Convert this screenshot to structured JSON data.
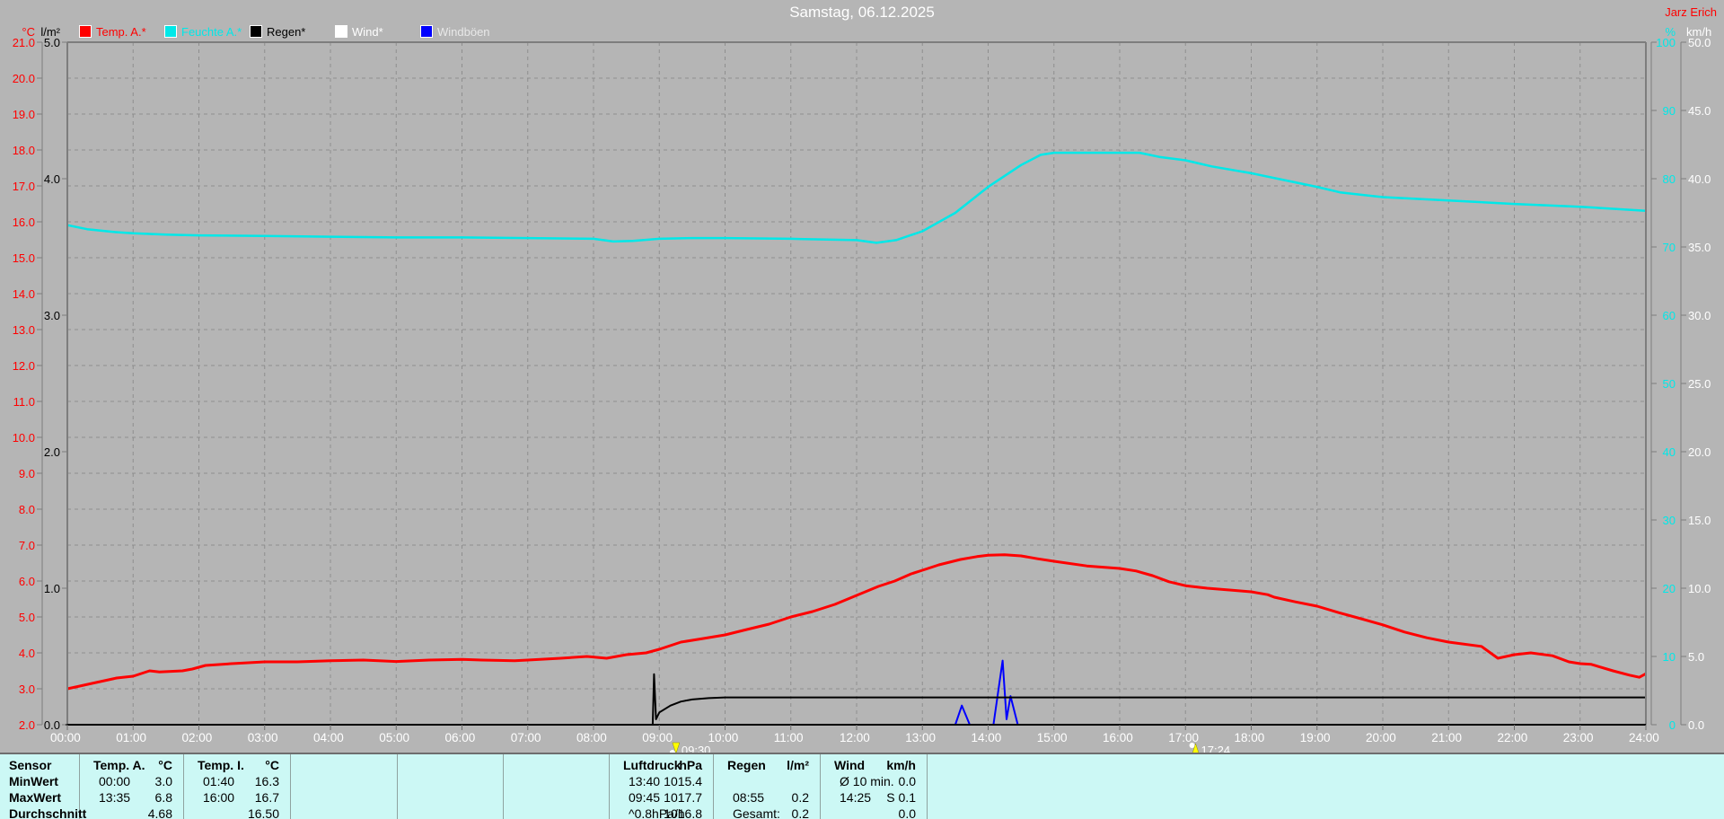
{
  "header": {
    "title": "Samstag, 06.12.2025",
    "station": "Jarz Erich"
  },
  "legend": {
    "items": [
      {
        "label": "Temp. A.*",
        "swatch": "#ff0000",
        "text_color": "#ff0000"
      },
      {
        "label": "Feuchte A.*",
        "swatch": "#00e8e8",
        "text_color": "#00e8e8"
      },
      {
        "label": "Regen*",
        "swatch": "#000000",
        "text_color": "#000000"
      },
      {
        "label": "Wind*",
        "swatch": "#ffffff",
        "text_color": "#ffffff"
      },
      {
        "label": "Windböen",
        "swatch": "#0000ff",
        "text_color": "#e8e8e8"
      }
    ]
  },
  "axes": {
    "temp": {
      "unit": "°C",
      "color": "#ff0000",
      "ticks": [
        "21.0",
        "20.0",
        "19.0",
        "18.0",
        "17.0",
        "16.0",
        "15.0",
        "14.0",
        "13.0",
        "12.0",
        "11.0",
        "10.0",
        "9.0",
        "8.0",
        "7.0",
        "6.0",
        "5.0",
        "4.0",
        "3.0",
        "2.0"
      ],
      "min": 2,
      "max": 21
    },
    "rain": {
      "unit": "l/m²",
      "color": "#000000",
      "ticks": [
        "5.0",
        "4.0",
        "3.0",
        "2.0",
        "1.0",
        "0.0"
      ],
      "min": 0,
      "max": 5
    },
    "hum": {
      "unit": "%",
      "color": "#00e8e8",
      "ticks": [
        "100",
        "90",
        "80",
        "70",
        "60",
        "50",
        "40",
        "30",
        "20",
        "10",
        "0"
      ],
      "min": 0,
      "max": 100
    },
    "wind": {
      "unit": "km/h",
      "color": "#ffffff",
      "ticks": [
        "50.0",
        "45.0",
        "40.0",
        "35.0",
        "30.0",
        "25.0",
        "20.0",
        "15.0",
        "10.0",
        "5.0",
        "0.0"
      ],
      "min": 0,
      "max": 50
    },
    "time": {
      "ticks": [
        "00:00",
        "01:00",
        "02:00",
        "03:00",
        "04:00",
        "05:00",
        "06:00",
        "07:00",
        "08:00",
        "09:00",
        "10:00",
        "11:00",
        "12:00",
        "13:00",
        "14:00",
        "15:00",
        "16:00",
        "17:00",
        "18:00",
        "19:00",
        "20:00",
        "21:00",
        "22:00",
        "23:00",
        "24:00"
      ]
    }
  },
  "sun_markers": [
    {
      "time": "09:30",
      "hour": 9.5,
      "kind": "sunrise"
    },
    {
      "time": "17:24",
      "hour": 17.4,
      "kind": "sunset"
    }
  ],
  "chart_data": {
    "type": "line",
    "x_unit": "hours",
    "x_range": [
      0,
      24
    ],
    "grid": {
      "horizontal_step_degC": 1,
      "vertical_step_hours": 1
    },
    "series": [
      {
        "name": "Temp. A.",
        "unit": "°C",
        "color": "#ff0000",
        "width": 3,
        "scale": "temp",
        "points": [
          [
            0,
            3.0
          ],
          [
            0.25,
            3.1
          ],
          [
            0.5,
            3.2
          ],
          [
            0.75,
            3.3
          ],
          [
            1.0,
            3.35
          ],
          [
            1.25,
            3.5
          ],
          [
            1.4,
            3.47
          ],
          [
            1.75,
            3.5
          ],
          [
            1.9,
            3.55
          ],
          [
            2.1,
            3.65
          ],
          [
            2.5,
            3.7
          ],
          [
            3.0,
            3.75
          ],
          [
            3.5,
            3.75
          ],
          [
            4.0,
            3.78
          ],
          [
            4.5,
            3.8
          ],
          [
            5.0,
            3.76
          ],
          [
            5.5,
            3.8
          ],
          [
            6.0,
            3.82
          ],
          [
            6.3,
            3.8
          ],
          [
            6.8,
            3.78
          ],
          [
            7.0,
            3.8
          ],
          [
            7.5,
            3.85
          ],
          [
            7.9,
            3.9
          ],
          [
            8.2,
            3.85
          ],
          [
            8.5,
            3.95
          ],
          [
            8.8,
            4.0
          ],
          [
            9.0,
            4.1
          ],
          [
            9.33,
            4.3
          ],
          [
            9.67,
            4.4
          ],
          [
            10.0,
            4.5
          ],
          [
            10.33,
            4.65
          ],
          [
            10.67,
            4.8
          ],
          [
            11.0,
            5.0
          ],
          [
            11.33,
            5.15
          ],
          [
            11.67,
            5.35
          ],
          [
            12.0,
            5.6
          ],
          [
            12.33,
            5.85
          ],
          [
            12.58,
            6.0
          ],
          [
            12.83,
            6.2
          ],
          [
            13.0,
            6.3
          ],
          [
            13.25,
            6.45
          ],
          [
            13.58,
            6.6
          ],
          [
            13.83,
            6.68
          ],
          [
            14.0,
            6.72
          ],
          [
            14.25,
            6.73
          ],
          [
            14.5,
            6.7
          ],
          [
            14.75,
            6.62
          ],
          [
            15.0,
            6.55
          ],
          [
            15.5,
            6.42
          ],
          [
            16.0,
            6.35
          ],
          [
            16.25,
            6.28
          ],
          [
            16.5,
            6.15
          ],
          [
            16.75,
            5.98
          ],
          [
            17.0,
            5.87
          ],
          [
            17.33,
            5.8
          ],
          [
            17.67,
            5.75
          ],
          [
            18.0,
            5.7
          ],
          [
            18.25,
            5.62
          ],
          [
            18.35,
            5.55
          ],
          [
            18.67,
            5.42
          ],
          [
            19.0,
            5.3
          ],
          [
            19.33,
            5.12
          ],
          [
            19.67,
            4.95
          ],
          [
            20.0,
            4.78
          ],
          [
            20.33,
            4.58
          ],
          [
            20.67,
            4.42
          ],
          [
            21.0,
            4.3
          ],
          [
            21.5,
            4.18
          ],
          [
            21.75,
            3.85
          ],
          [
            22.0,
            3.95
          ],
          [
            22.25,
            4.0
          ],
          [
            22.58,
            3.92
          ],
          [
            22.83,
            3.75
          ],
          [
            23.0,
            3.7
          ],
          [
            23.17,
            3.68
          ],
          [
            23.5,
            3.5
          ],
          [
            23.75,
            3.38
          ],
          [
            23.9,
            3.32
          ],
          [
            24.0,
            3.42
          ]
        ]
      },
      {
        "name": "Feuchte A.",
        "unit": "%",
        "color": "#00e8e8",
        "width": 2.5,
        "scale": "hum",
        "points": [
          [
            0,
            73.2
          ],
          [
            0.3,
            72.6
          ],
          [
            0.7,
            72.2
          ],
          [
            1.0,
            72.0
          ],
          [
            1.5,
            71.8
          ],
          [
            2,
            71.7
          ],
          [
            3,
            71.6
          ],
          [
            4,
            71.5
          ],
          [
            5,
            71.4
          ],
          [
            6,
            71.4
          ],
          [
            7,
            71.3
          ],
          [
            8,
            71.2
          ],
          [
            8.3,
            70.8
          ],
          [
            8.6,
            70.9
          ],
          [
            9,
            71.2
          ],
          [
            9.5,
            71.3
          ],
          [
            10,
            71.3
          ],
          [
            11,
            71.2
          ],
          [
            12,
            71.0
          ],
          [
            12.3,
            70.6
          ],
          [
            12.6,
            71.0
          ],
          [
            13,
            72.3
          ],
          [
            13.5,
            75.0
          ],
          [
            14,
            78.8
          ],
          [
            14.5,
            82.0
          ],
          [
            14.8,
            83.5
          ],
          [
            15,
            83.8
          ],
          [
            16.3,
            83.8
          ],
          [
            16.6,
            83.2
          ],
          [
            17,
            82.7
          ],
          [
            17.4,
            81.8
          ],
          [
            18,
            80.8
          ],
          [
            18.5,
            79.8
          ],
          [
            19,
            78.8
          ],
          [
            19.35,
            78.0
          ],
          [
            20,
            77.3
          ],
          [
            21,
            76.8
          ],
          [
            22,
            76.3
          ],
          [
            23,
            75.9
          ],
          [
            24,
            75.3
          ]
        ]
      },
      {
        "name": "Wind",
        "unit": "km/h",
        "color": "#ffffff",
        "width": 2,
        "scale": "wind",
        "points": [
          [
            0,
            0
          ],
          [
            24,
            0
          ]
        ]
      },
      {
        "name": "Windböen",
        "unit": "km/h",
        "color": "#0000ff",
        "width": 2,
        "scale": "wind",
        "points": [
          [
            0,
            0
          ],
          [
            13.5,
            0
          ],
          [
            13.6,
            1.4
          ],
          [
            13.72,
            0
          ],
          [
            14.08,
            0
          ],
          [
            14.22,
            4.7
          ],
          [
            14.28,
            0.4
          ],
          [
            14.34,
            2.1
          ],
          [
            14.45,
            0
          ],
          [
            24,
            0
          ]
        ]
      },
      {
        "name": "Regen",
        "unit": "l/m²",
        "color": "#000000",
        "width": 2,
        "scale": "rain",
        "points": [
          [
            0,
            0
          ],
          [
            8.9,
            0
          ],
          [
            8.92,
            0.37
          ],
          [
            8.95,
            0.04
          ],
          [
            9.0,
            0.09
          ],
          [
            9.17,
            0.14
          ],
          [
            9.33,
            0.17
          ],
          [
            9.5,
            0.185
          ],
          [
            9.75,
            0.195
          ],
          [
            10,
            0.2
          ],
          [
            24,
            0.2
          ]
        ]
      }
    ]
  },
  "table": {
    "row_labels": [
      "Sensor",
      "MinWert",
      "MaxWert",
      "Durchschnitt"
    ],
    "columns": [
      {
        "name": "Temp. A.",
        "unit": "°C",
        "rows": [
          [
            "00:00",
            "3.0"
          ],
          [
            "13:35",
            "6.8"
          ],
          [
            "",
            "4.68"
          ]
        ]
      },
      {
        "name": "Temp. I.",
        "unit": "°C",
        "rows": [
          [
            "01:40",
            "16.3"
          ],
          [
            "16:00",
            "16.7"
          ],
          [
            "",
            "16.50"
          ]
        ]
      },
      {
        "name": "",
        "unit": "",
        "rows": [
          [
            "",
            ""
          ],
          [
            "",
            ""
          ],
          [
            "",
            ""
          ]
        ]
      },
      {
        "name": "",
        "unit": "",
        "rows": [
          [
            "",
            ""
          ],
          [
            "",
            ""
          ],
          [
            "",
            ""
          ]
        ]
      },
      {
        "name": "",
        "unit": "",
        "rows": [
          [
            "",
            ""
          ],
          [
            "",
            ""
          ],
          [
            "",
            ""
          ]
        ]
      },
      {
        "name": "Luftdruck",
        "unit": "hPa",
        "rows": [
          [
            "13:40",
            "1015.4"
          ],
          [
            "09:45",
            "1017.7"
          ],
          [
            "^0.8hPa/h",
            "1016.8"
          ]
        ]
      },
      {
        "name": "Regen",
        "unit": "l/m²",
        "rows": [
          [
            "",
            ""
          ],
          [
            "08:55",
            "0.2"
          ],
          [
            "Gesamt:",
            "0.2"
          ]
        ]
      },
      {
        "name": "Wind",
        "unit": "km/h",
        "rows": [
          [
            "Ø 10 min.",
            "0.0"
          ],
          [
            "14:25",
            "S 0.1"
          ],
          [
            "",
            "0.0"
          ]
        ]
      },
      {
        "name": "",
        "unit": "",
        "rows": [
          [
            "",
            ""
          ],
          [
            "",
            ""
          ],
          [
            "",
            ""
          ]
        ]
      }
    ]
  }
}
